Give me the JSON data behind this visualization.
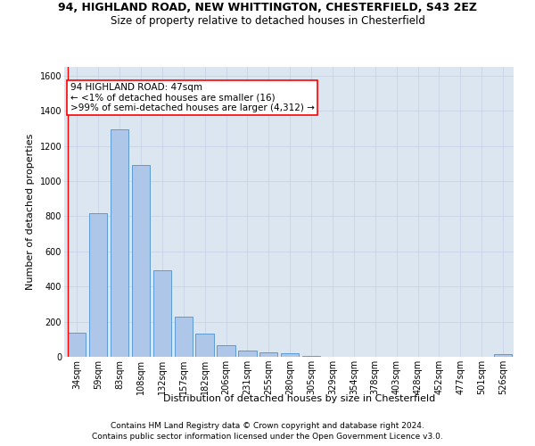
{
  "title_line1": "94, HIGHLAND ROAD, NEW WHITTINGTON, CHESTERFIELD, S43 2EZ",
  "title_line2": "Size of property relative to detached houses in Chesterfield",
  "xlabel": "Distribution of detached houses by size in Chesterfield",
  "ylabel": "Number of detached properties",
  "categories": [
    "34sqm",
    "59sqm",
    "83sqm",
    "108sqm",
    "132sqm",
    "157sqm",
    "182sqm",
    "206sqm",
    "231sqm",
    "255sqm",
    "280sqm",
    "305sqm",
    "329sqm",
    "354sqm",
    "378sqm",
    "403sqm",
    "428sqm",
    "452sqm",
    "477sqm",
    "501sqm",
    "526sqm"
  ],
  "values": [
    135,
    815,
    1295,
    1090,
    495,
    230,
    130,
    65,
    38,
    25,
    18,
    5,
    0,
    0,
    0,
    0,
    0,
    0,
    0,
    0,
    15
  ],
  "bar_color": "#aec6e8",
  "bar_edge_color": "#5b9bd5",
  "annotation_line1": "94 HIGHLAND ROAD: 47sqm",
  "annotation_line2": "← <1% of detached houses are smaller (16)",
  "annotation_line3": ">99% of semi-detached houses are larger (4,312) →",
  "annotation_box_color": "#ffffff",
  "annotation_border_color": "#ff0000",
  "vline_color": "#ff0000",
  "ylim": [
    0,
    1650
  ],
  "yticks": [
    0,
    200,
    400,
    600,
    800,
    1000,
    1200,
    1400,
    1600
  ],
  "grid_color": "#c8d4e8",
  "bg_color": "#dce6f1",
  "footer_line1": "Contains HM Land Registry data © Crown copyright and database right 2024.",
  "footer_line2": "Contains public sector information licensed under the Open Government Licence v3.0.",
  "title_fontsize": 9,
  "subtitle_fontsize": 8.5,
  "axis_label_fontsize": 8,
  "tick_fontsize": 7,
  "annotation_fontsize": 7.5,
  "footer_fontsize": 6.5,
  "ylabel_fontsize": 8
}
